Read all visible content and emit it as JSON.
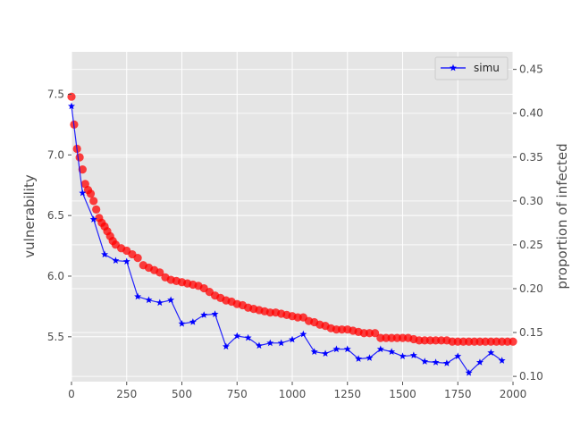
{
  "chart_data": {
    "type": "line",
    "style": "ggplot",
    "grid": true,
    "xlim": [
      0,
      2000
    ],
    "ylim_left": [
      5.13,
      7.85
    ],
    "ylim_right": [
      0.094,
      0.47
    ],
    "ylabel_left": "vulnerability",
    "ylabel_right": "proportion of infected",
    "xticks": [
      "0",
      "250",
      "500",
      "750",
      "1000",
      "1250",
      "1500",
      "1750",
      "2000"
    ],
    "yticks_left": [
      "5.5",
      "6.0",
      "6.5",
      "7.0",
      "7.5"
    ],
    "yticks_right": [
      "0.10",
      "0.15",
      "0.20",
      "0.25",
      "0.30",
      "0.35",
      "0.40",
      "0.45"
    ],
    "legend": {
      "placement": "top-right",
      "entries": [
        "simu"
      ]
    },
    "colors": {
      "axes_bg": "#e5e5e5",
      "grid": "#ffffff",
      "vulnerability": "#ff0000",
      "simu": "#0000ff",
      "tick_text": "#4d4d4d"
    },
    "series": [
      {
        "axis": "left",
        "marker": "circle",
        "x": [
          0,
          12,
          25,
          37,
          50,
          62,
          75,
          87,
          100,
          112,
          125,
          137,
          150,
          162,
          175,
          187,
          200,
          225,
          250,
          275,
          300,
          325,
          350,
          375,
          400,
          425,
          450,
          475,
          500,
          525,
          550,
          575,
          600,
          625,
          650,
          675,
          700,
          725,
          750,
          775,
          800,
          825,
          850,
          875,
          900,
          925,
          950,
          975,
          1000,
          1025,
          1050,
          1075,
          1100,
          1125,
          1150,
          1175,
          1200,
          1225,
          1250,
          1275,
          1300,
          1325,
          1350,
          1375,
          1400,
          1425,
          1450,
          1475,
          1500,
          1525,
          1550,
          1575,
          1600,
          1625,
          1650,
          1675,
          1700,
          1725,
          1750,
          1775,
          1800,
          1825,
          1850,
          1875,
          1900,
          1925,
          1950,
          1975,
          2000
        ],
        "values": [
          7.48,
          7.25,
          7.05,
          6.98,
          6.88,
          6.76,
          6.71,
          6.68,
          6.62,
          6.55,
          6.48,
          6.44,
          6.41,
          6.37,
          6.33,
          6.29,
          6.26,
          6.23,
          6.21,
          6.18,
          6.15,
          6.09,
          6.07,
          6.05,
          6.03,
          5.99,
          5.97,
          5.96,
          5.95,
          5.94,
          5.93,
          5.92,
          5.9,
          5.87,
          5.84,
          5.82,
          5.8,
          5.79,
          5.77,
          5.76,
          5.74,
          5.73,
          5.72,
          5.71,
          5.7,
          5.7,
          5.69,
          5.68,
          5.67,
          5.66,
          5.66,
          5.63,
          5.62,
          5.6,
          5.59,
          5.57,
          5.56,
          5.56,
          5.56,
          5.55,
          5.54,
          5.53,
          5.53,
          5.53,
          5.49,
          5.49,
          5.49,
          5.49,
          5.49,
          5.49,
          5.48,
          5.47,
          5.47,
          5.47,
          5.47,
          5.47,
          5.47,
          5.46,
          5.46,
          5.46,
          5.46,
          5.46,
          5.46,
          5.46,
          5.46,
          5.46,
          5.46,
          5.46,
          5.46
        ]
      },
      {
        "name": "simu",
        "axis": "right",
        "marker": "star",
        "x": [
          0,
          50,
          100,
          150,
          200,
          250,
          300,
          350,
          400,
          450,
          500,
          550,
          600,
          650,
          700,
          750,
          800,
          850,
          900,
          950,
          1000,
          1050,
          1100,
          1150,
          1200,
          1250,
          1300,
          1350,
          1400,
          1450,
          1500,
          1550,
          1600,
          1650,
          1700,
          1750,
          1800,
          1850,
          1900,
          1950
        ],
        "values": [
          0.408,
          0.309,
          0.279,
          0.239,
          0.232,
          0.231,
          0.191,
          0.187,
          0.184,
          0.187,
          0.16,
          0.162,
          0.17,
          0.171,
          0.134,
          0.146,
          0.144,
          0.135,
          0.138,
          0.138,
          0.142,
          0.148,
          0.128,
          0.126,
          0.131,
          0.131,
          0.12,
          0.121,
          0.131,
          0.128,
          0.123,
          0.124,
          0.117,
          0.116,
          0.115,
          0.123,
          0.104,
          0.116,
          0.127,
          0.118
        ]
      }
    ]
  }
}
